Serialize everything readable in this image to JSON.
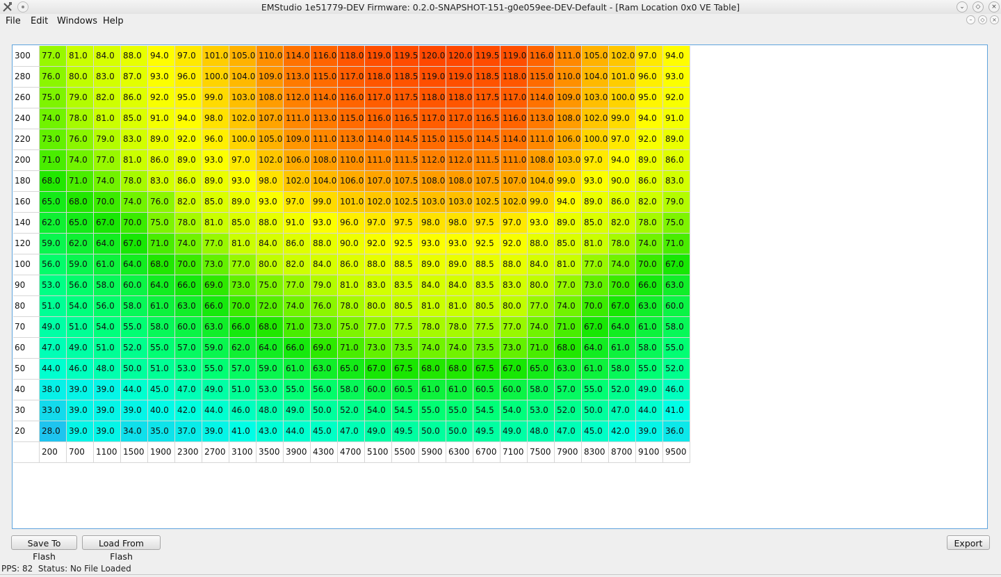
{
  "window": {
    "title": "EMStudio 1e51779-DEV Firmware: 0.2.0-SNAPSHOT-151-g0e059ee-DEV-Default - [Ram Location 0x0 VE Table]",
    "controls": {
      "minimize": "⌄",
      "restore": "◇",
      "close": "×"
    },
    "mdi_controls": {
      "minimize": "–",
      "restore": "◇",
      "close": "×"
    }
  },
  "menu": {
    "file": "File",
    "edit": "Edit",
    "windows": "Windows",
    "help": "Help"
  },
  "table": {
    "y_axis": [
      300,
      280,
      260,
      240,
      220,
      200,
      180,
      160,
      140,
      120,
      100,
      90,
      80,
      70,
      60,
      50,
      40,
      30,
      20
    ],
    "x_axis": [
      200,
      700,
      1100,
      1500,
      1900,
      2300,
      2700,
      3100,
      3500,
      3900,
      4300,
      4700,
      5100,
      5500,
      5900,
      6300,
      6700,
      7100,
      7500,
      7900,
      8300,
      8700,
      9100,
      9500
    ],
    "rows": [
      [
        "77.0",
        "81.0",
        "84.0",
        "88.0",
        "94.0",
        "97.0",
        "101.0",
        "105.0",
        "110.0",
        "114.0",
        "116.0",
        "118.0",
        "119.0",
        "119.5",
        "120.0",
        "120.0",
        "119.5",
        "119.0",
        "116.0",
        "111.0",
        "105.0",
        "102.0",
        "97.0",
        "94.0"
      ],
      [
        "76.0",
        "80.0",
        "83.0",
        "87.0",
        "93.0",
        "96.0",
        "100.0",
        "104.0",
        "109.0",
        "113.0",
        "115.0",
        "117.0",
        "118.0",
        "118.5",
        "119.0",
        "119.0",
        "118.5",
        "118.0",
        "115.0",
        "110.0",
        "104.0",
        "101.0",
        "96.0",
        "93.0"
      ],
      [
        "75.0",
        "79.0",
        "82.0",
        "86.0",
        "92.0",
        "95.0",
        "99.0",
        "103.0",
        "108.0",
        "112.0",
        "114.0",
        "116.0",
        "117.0",
        "117.5",
        "118.0",
        "118.0",
        "117.5",
        "117.0",
        "114.0",
        "109.0",
        "103.0",
        "100.0",
        "95.0",
        "92.0"
      ],
      [
        "74.0",
        "78.0",
        "81.0",
        "85.0",
        "91.0",
        "94.0",
        "98.0",
        "102.0",
        "107.0",
        "111.0",
        "113.0",
        "115.0",
        "116.0",
        "116.5",
        "117.0",
        "117.0",
        "116.5",
        "116.0",
        "113.0",
        "108.0",
        "102.0",
        "99.0",
        "94.0",
        "91.0"
      ],
      [
        "73.0",
        "76.0",
        "79.0",
        "83.0",
        "89.0",
        "92.0",
        "96.0",
        "100.0",
        "105.0",
        "109.0",
        "111.0",
        "113.0",
        "114.0",
        "114.5",
        "115.0",
        "115.0",
        "114.5",
        "114.0",
        "111.0",
        "106.0",
        "100.0",
        "97.0",
        "92.0",
        "89.0"
      ],
      [
        "71.0",
        "74.0",
        "77.0",
        "81.0",
        "86.0",
        "89.0",
        "93.0",
        "97.0",
        "102.0",
        "106.0",
        "108.0",
        "110.0",
        "111.0",
        "111.5",
        "112.0",
        "112.0",
        "111.5",
        "111.0",
        "108.0",
        "103.0",
        "97.0",
        "94.0",
        "89.0",
        "86.0"
      ],
      [
        "68.0",
        "71.0",
        "74.0",
        "78.0",
        "83.0",
        "86.0",
        "89.0",
        "93.0",
        "98.0",
        "102.0",
        "104.0",
        "106.0",
        "107.0",
        "107.5",
        "108.0",
        "108.0",
        "107.5",
        "107.0",
        "104.0",
        "99.0",
        "93.0",
        "90.0",
        "86.0",
        "83.0"
      ],
      [
        "65.0",
        "68.0",
        "70.0",
        "74.0",
        "76.0",
        "82.0",
        "85.0",
        "89.0",
        "93.0",
        "97.0",
        "99.0",
        "101.0",
        "102.0",
        "102.5",
        "103.0",
        "103.0",
        "102.5",
        "102.0",
        "99.0",
        "94.0",
        "89.0",
        "86.0",
        "82.0",
        "79.0"
      ],
      [
        "62.0",
        "65.0",
        "67.0",
        "70.0",
        "75.0",
        "78.0",
        "81.0",
        "85.0",
        "88.0",
        "91.0",
        "93.0",
        "96.0",
        "97.0",
        "97.5",
        "98.0",
        "98.0",
        "97.5",
        "97.0",
        "93.0",
        "89.0",
        "85.0",
        "82.0",
        "78.0",
        "75.0"
      ],
      [
        "59.0",
        "62.0",
        "64.0",
        "67.0",
        "71.0",
        "74.0",
        "77.0",
        "81.0",
        "84.0",
        "86.0",
        "88.0",
        "90.0",
        "92.0",
        "92.5",
        "93.0",
        "93.0",
        "92.5",
        "92.0",
        "88.0",
        "85.0",
        "81.0",
        "78.0",
        "74.0",
        "71.0"
      ],
      [
        "56.0",
        "59.0",
        "61.0",
        "64.0",
        "68.0",
        "70.0",
        "73.0",
        "77.0",
        "80.0",
        "82.0",
        "84.0",
        "86.0",
        "88.0",
        "88.5",
        "89.0",
        "89.0",
        "88.5",
        "88.0",
        "84.0",
        "81.0",
        "77.0",
        "74.0",
        "70.0",
        "67.0"
      ],
      [
        "53.0",
        "56.0",
        "58.0",
        "60.0",
        "64.0",
        "66.0",
        "69.0",
        "73.0",
        "75.0",
        "77.0",
        "79.0",
        "81.0",
        "83.0",
        "83.5",
        "84.0",
        "84.0",
        "83.5",
        "83.0",
        "80.0",
        "77.0",
        "73.0",
        "70.0",
        "66.0",
        "63.0"
      ],
      [
        "51.0",
        "54.0",
        "56.0",
        "58.0",
        "61.0",
        "63.0",
        "66.0",
        "70.0",
        "72.0",
        "74.0",
        "76.0",
        "78.0",
        "80.0",
        "80.5",
        "81.0",
        "81.0",
        "80.5",
        "80.0",
        "77.0",
        "74.0",
        "70.0",
        "67.0",
        "63.0",
        "60.0"
      ],
      [
        "49.0",
        "51.0",
        "54.0",
        "55.0",
        "58.0",
        "60.0",
        "63.0",
        "66.0",
        "68.0",
        "71.0",
        "73.0",
        "75.0",
        "77.0",
        "77.5",
        "78.0",
        "78.0",
        "77.5",
        "77.0",
        "74.0",
        "71.0",
        "67.0",
        "64.0",
        "61.0",
        "58.0"
      ],
      [
        "47.0",
        "49.0",
        "51.0",
        "52.0",
        "55.0",
        "57.0",
        "59.0",
        "62.0",
        "64.0",
        "66.0",
        "69.0",
        "71.0",
        "73.0",
        "73.5",
        "74.0",
        "74.0",
        "73.5",
        "73.0",
        "71.0",
        "68.0",
        "64.0",
        "61.0",
        "58.0",
        "55.0"
      ],
      [
        "44.0",
        "46.0",
        "48.0",
        "50.0",
        "51.0",
        "53.0",
        "55.0",
        "57.0",
        "59.0",
        "61.0",
        "63.0",
        "65.0",
        "67.0",
        "67.5",
        "68.0",
        "68.0",
        "67.5",
        "67.0",
        "65.0",
        "63.0",
        "61.0",
        "58.0",
        "55.0",
        "52.0"
      ],
      [
        "38.0",
        "39.0",
        "39.0",
        "44.0",
        "45.0",
        "47.0",
        "49.0",
        "51.0",
        "53.0",
        "55.0",
        "56.0",
        "58.0",
        "60.0",
        "60.5",
        "61.0",
        "61.0",
        "60.5",
        "60.0",
        "58.0",
        "57.0",
        "55.0",
        "52.0",
        "49.0",
        "46.0"
      ],
      [
        "33.0",
        "39.0",
        "39.0",
        "39.0",
        "40.0",
        "42.0",
        "44.0",
        "46.0",
        "48.0",
        "49.0",
        "50.0",
        "52.0",
        "54.0",
        "54.5",
        "55.0",
        "55.0",
        "54.5",
        "54.0",
        "53.0",
        "52.0",
        "50.0",
        "47.0",
        "44.0",
        "41.0"
      ],
      [
        "28.0",
        "39.0",
        "39.0",
        "34.0",
        "35.0",
        "37.0",
        "39.0",
        "41.0",
        "43.0",
        "44.0",
        "45.0",
        "47.0",
        "49.0",
        "49.5",
        "50.0",
        "50.0",
        "49.5",
        "49.0",
        "48.0",
        "47.0",
        "45.0",
        "42.0",
        "39.0",
        "36.0"
      ]
    ]
  },
  "buttons": {
    "save": "Save To Flash",
    "load": "Load From Flash",
    "export": "Export"
  },
  "status": {
    "pps": "PPS: 82",
    "status": "Status: No File Loaded"
  },
  "colors": {
    "frame_border": "#5ea3dd",
    "gradient_stops": [
      "#1ec4ef",
      "#00ffe6",
      "#00ff7a",
      "#19e600",
      "#c8ff00",
      "#ffff00",
      "#ffa500",
      "#ff4800"
    ]
  }
}
